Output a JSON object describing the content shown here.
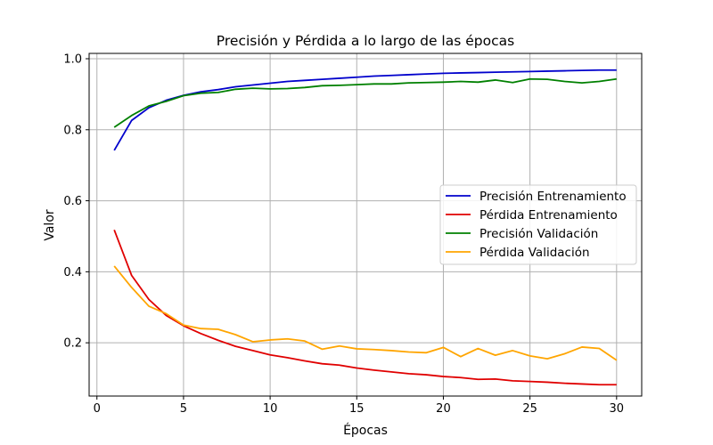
{
  "chart_data": {
    "type": "line",
    "title": "Precisión y Pérdida a lo largo de las épocas",
    "xlabel": "Épocas",
    "ylabel": "Valor",
    "xlim": [
      -0.45,
      31.45
    ],
    "ylim": [
      0.05,
      1.015
    ],
    "xticks": [
      0,
      5,
      10,
      15,
      20,
      25,
      30
    ],
    "yticks": [
      0.2,
      0.4,
      0.6,
      0.8,
      1.0
    ],
    "xtick_labels": [
      "0",
      "5",
      "10",
      "15",
      "20",
      "25",
      "30"
    ],
    "ytick_labels": [
      "0.2",
      "0.4",
      "0.6",
      "0.8",
      "1.0"
    ],
    "grid": true,
    "legend_position": "center-right",
    "x": [
      1,
      2,
      3,
      4,
      5,
      6,
      7,
      8,
      9,
      10,
      11,
      12,
      13,
      14,
      15,
      16,
      17,
      18,
      19,
      20,
      21,
      22,
      23,
      24,
      25,
      26,
      27,
      28,
      29,
      30
    ],
    "series": [
      {
        "name": "Precisión Entrenamiento",
        "color": "#0000cc",
        "values": [
          0.742,
          0.826,
          0.862,
          0.883,
          0.897,
          0.907,
          0.913,
          0.921,
          0.926,
          0.931,
          0.936,
          0.939,
          0.942,
          0.945,
          0.948,
          0.951,
          0.953,
          0.955,
          0.957,
          0.959,
          0.96,
          0.961,
          0.962,
          0.963,
          0.964,
          0.965,
          0.966,
          0.967,
          0.968,
          0.968
        ]
      },
      {
        "name": "Pérdida Entrenamiento",
        "color": "#e00000",
        "values": [
          0.518,
          0.39,
          0.322,
          0.277,
          0.248,
          0.226,
          0.207,
          0.19,
          0.178,
          0.166,
          0.158,
          0.149,
          0.141,
          0.137,
          0.129,
          0.123,
          0.118,
          0.113,
          0.11,
          0.105,
          0.102,
          0.097,
          0.098,
          0.093,
          0.091,
          0.089,
          0.086,
          0.084,
          0.082,
          0.082
        ]
      },
      {
        "name": "Precisión Validación",
        "color": "#008000",
        "values": [
          0.807,
          0.84,
          0.867,
          0.88,
          0.896,
          0.903,
          0.905,
          0.914,
          0.917,
          0.915,
          0.916,
          0.919,
          0.924,
          0.925,
          0.927,
          0.929,
          0.929,
          0.932,
          0.933,
          0.934,
          0.936,
          0.934,
          0.94,
          0.933,
          0.943,
          0.942,
          0.936,
          0.932,
          0.936,
          0.943
        ]
      },
      {
        "name": "Pérdida Validación",
        "color": "#ffa500",
        "values": [
          0.416,
          0.356,
          0.303,
          0.282,
          0.25,
          0.24,
          0.238,
          0.223,
          0.203,
          0.208,
          0.211,
          0.205,
          0.182,
          0.191,
          0.183,
          0.181,
          0.178,
          0.174,
          0.172,
          0.187,
          0.161,
          0.184,
          0.165,
          0.178,
          0.163,
          0.155,
          0.169,
          0.188,
          0.184,
          0.151
        ]
      }
    ]
  }
}
